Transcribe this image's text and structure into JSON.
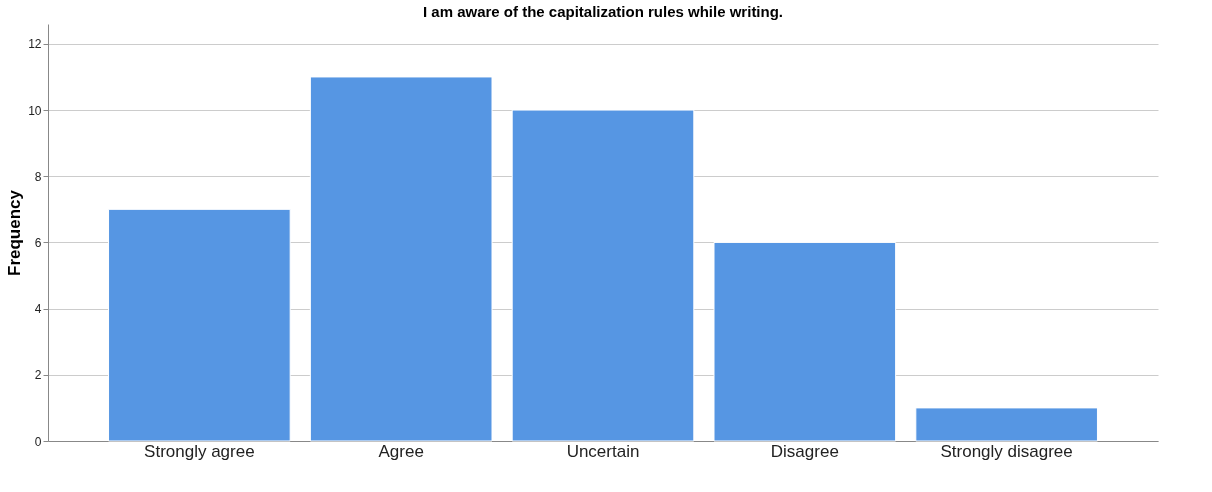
{
  "chart_data": {
    "type": "bar",
    "title": "I am aware of the capitalization rules while writing.",
    "ylabel": "Frequency",
    "categories": [
      "Strongly agree",
      "Agree",
      "Uncertain",
      "Disagree",
      "Strongly disagree"
    ],
    "values": [
      7,
      11,
      10,
      6,
      1
    ],
    "color": "#5696e3",
    "ylim": [
      0,
      12.6
    ],
    "yticks": [
      0,
      2,
      4,
      6,
      8,
      10,
      12
    ],
    "grid": "y"
  }
}
